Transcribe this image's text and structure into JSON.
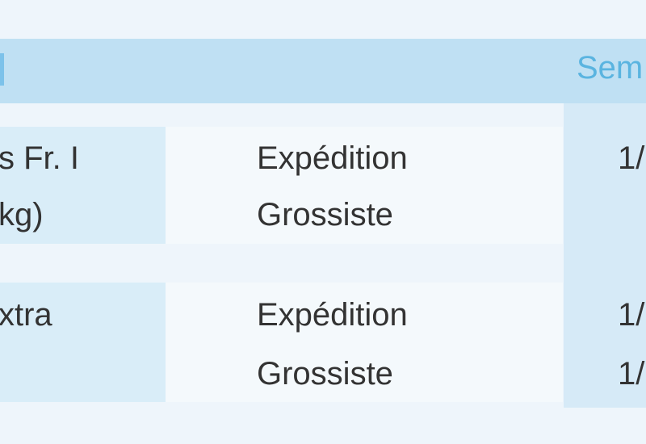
{
  "header": {
    "title": "Sem"
  },
  "table": {
    "rows": [
      {
        "label": [
          "s Fr. I",
          "kg)"
        ],
        "type": [
          "Expédition",
          "Grossiste"
        ],
        "value": [
          "1/"
        ]
      },
      {
        "label": [
          "xtra"
        ],
        "type": [
          "Expédition",
          "Grossiste"
        ],
        "value": [
          "1/",
          "1/"
        ]
      }
    ]
  }
}
